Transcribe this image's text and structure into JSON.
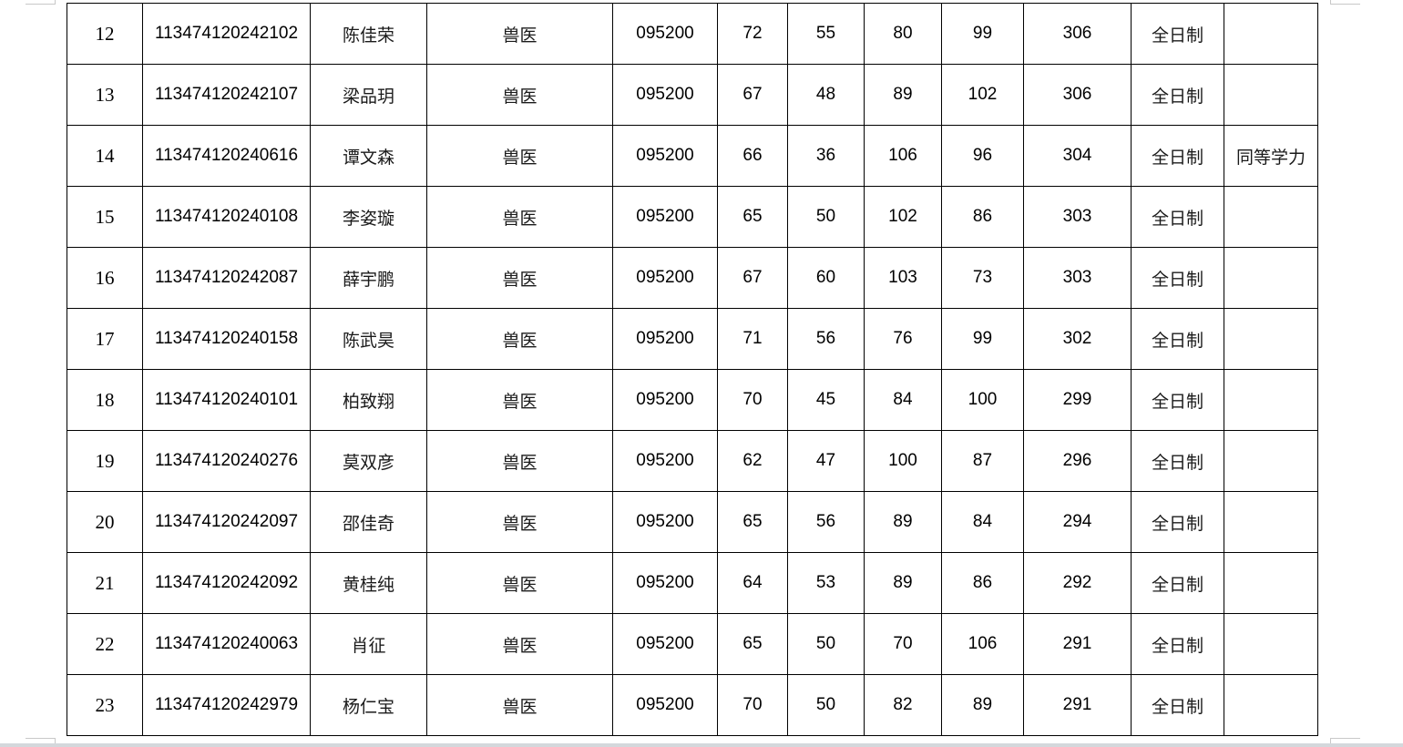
{
  "rows": [
    {
      "no": "12",
      "id": "113474120242102",
      "name": "陈佳荣",
      "major": "兽医",
      "code": "095200",
      "s1": "72",
      "s2": "55",
      "s3": "80",
      "s4": "99",
      "total": "306",
      "type": "全日制",
      "note": ""
    },
    {
      "no": "13",
      "id": "113474120242107",
      "name": "梁品玥",
      "major": "兽医",
      "code": "095200",
      "s1": "67",
      "s2": "48",
      "s3": "89",
      "s4": "102",
      "total": "306",
      "type": "全日制",
      "note": ""
    },
    {
      "no": "14",
      "id": "113474120240616",
      "name": "谭文森",
      "major": "兽医",
      "code": "095200",
      "s1": "66",
      "s2": "36",
      "s3": "106",
      "s4": "96",
      "total": "304",
      "type": "全日制",
      "note": "同等学力"
    },
    {
      "no": "15",
      "id": "113474120240108",
      "name": "李姿璇",
      "major": "兽医",
      "code": "095200",
      "s1": "65",
      "s2": "50",
      "s3": "102",
      "s4": "86",
      "total": "303",
      "type": "全日制",
      "note": ""
    },
    {
      "no": "16",
      "id": "113474120242087",
      "name": "薛宇鹏",
      "major": "兽医",
      "code": "095200",
      "s1": "67",
      "s2": "60",
      "s3": "103",
      "s4": "73",
      "total": "303",
      "type": "全日制",
      "note": ""
    },
    {
      "no": "17",
      "id": "113474120240158",
      "name": "陈武昊",
      "major": "兽医",
      "code": "095200",
      "s1": "71",
      "s2": "56",
      "s3": "76",
      "s4": "99",
      "total": "302",
      "type": "全日制",
      "note": ""
    },
    {
      "no": "18",
      "id": "113474120240101",
      "name": "柏致翔",
      "major": "兽医",
      "code": "095200",
      "s1": "70",
      "s2": "45",
      "s3": "84",
      "s4": "100",
      "total": "299",
      "type": "全日制",
      "note": ""
    },
    {
      "no": "19",
      "id": "113474120240276",
      "name": "莫双彦",
      "major": "兽医",
      "code": "095200",
      "s1": "62",
      "s2": "47",
      "s3": "100",
      "s4": "87",
      "total": "296",
      "type": "全日制",
      "note": ""
    },
    {
      "no": "20",
      "id": "113474120242097",
      "name": "邵佳奇",
      "major": "兽医",
      "code": "095200",
      "s1": "65",
      "s2": "56",
      "s3": "89",
      "s4": "84",
      "total": "294",
      "type": "全日制",
      "note": ""
    },
    {
      "no": "21",
      "id": "113474120242092",
      "name": "黄桂纯",
      "major": "兽医",
      "code": "095200",
      "s1": "64",
      "s2": "53",
      "s3": "89",
      "s4": "86",
      "total": "292",
      "type": "全日制",
      "note": ""
    },
    {
      "no": "22",
      "id": "113474120240063",
      "name": "肖征",
      "major": "兽医",
      "code": "095200",
      "s1": "65",
      "s2": "50",
      "s3": "70",
      "s4": "106",
      "total": "291",
      "type": "全日制",
      "note": ""
    },
    {
      "no": "23",
      "id": "113474120242979",
      "name": "杨仁宝",
      "major": "兽医",
      "code": "095200",
      "s1": "70",
      "s2": "50",
      "s3": "82",
      "s4": "89",
      "total": "291",
      "type": "全日制",
      "note": ""
    }
  ]
}
